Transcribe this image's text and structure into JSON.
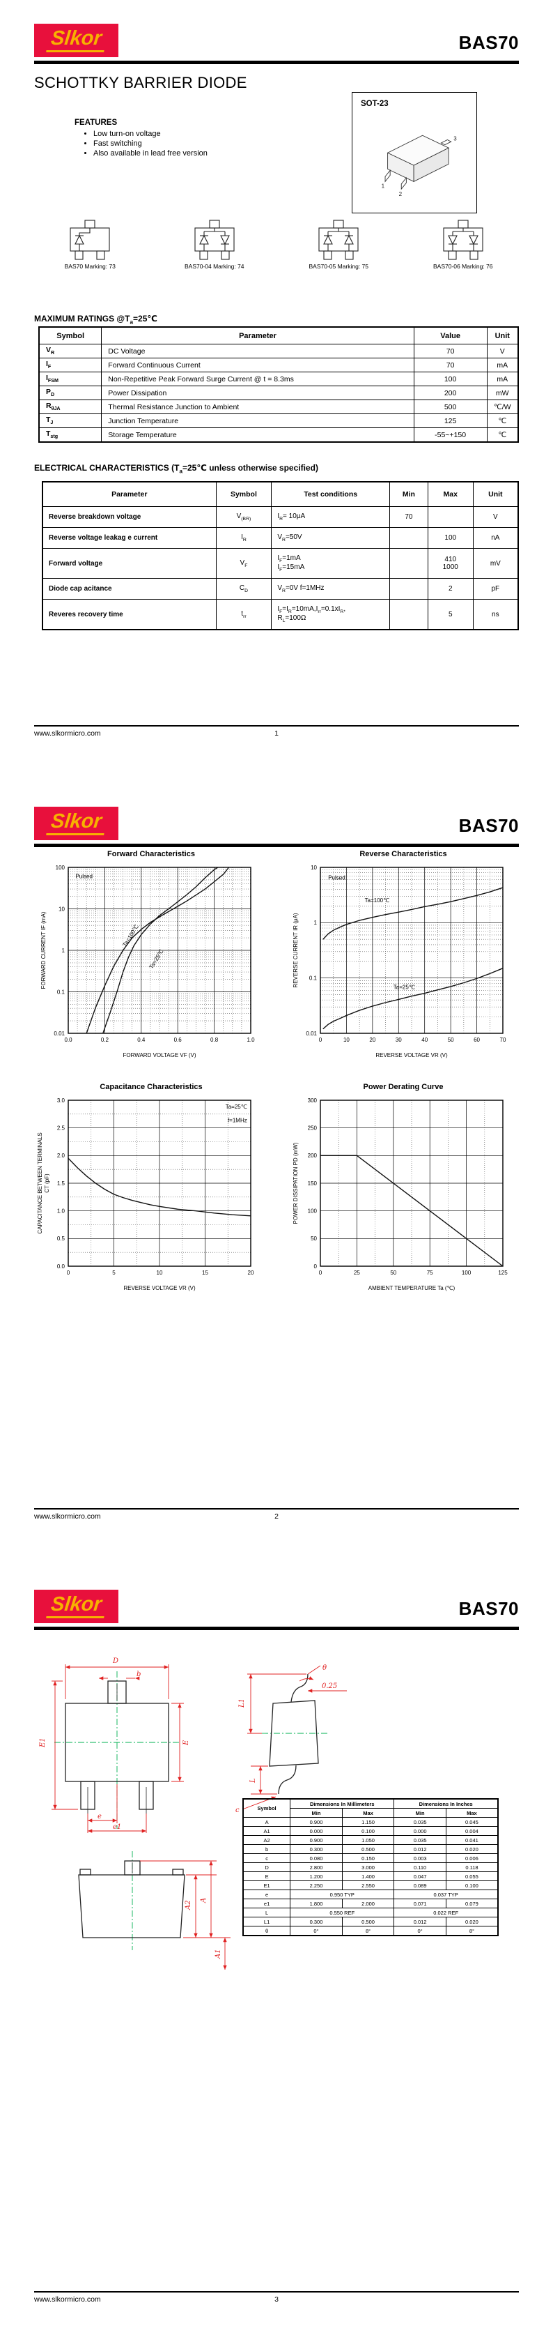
{
  "doc": {
    "brand": "Slkor",
    "part": "BAS70",
    "site": "www.slkormicro.com"
  },
  "page1": {
    "page_no": "1",
    "title": "SCHOTTKY BARRIER DIODE",
    "package": {
      "label": "SOT-23",
      "pins": [
        "1",
        "2",
        "3"
      ]
    },
    "features": {
      "heading": "FEATURES",
      "items": [
        "Low turn-on voltage",
        "Fast switching",
        "Also available in lead free version"
      ]
    },
    "markings": [
      {
        "label": "BAS70 Marking: 73"
      },
      {
        "label": "BAS70-04 Marking: 74"
      },
      {
        "label": "BAS70-05 Marking: 75"
      },
      {
        "label": "BAS70-06 Marking: 76"
      }
    ],
    "max_ratings": {
      "heading": "MAXIMUM RATINGS @T_a=25℃",
      "headers": [
        "Symbol",
        "Parameter",
        "Value",
        "Unit"
      ],
      "rows": [
        [
          "V_R",
          "DC Voltage",
          "70",
          "V"
        ],
        [
          "I_F",
          "Forward Continuous Current",
          "70",
          "mA"
        ],
        [
          "I_FSM",
          "Non-Repetitive Peak Forward Surge Current @ t = 8.3ms",
          "100",
          "mA"
        ],
        [
          "P_D",
          "Power Dissipation",
          "200",
          "mW"
        ],
        [
          "R_θJA",
          "Thermal Resistance Junction to Ambient",
          "500",
          "℃/W"
        ],
        [
          "T_J",
          "Junction Temperature",
          "125",
          "℃"
        ],
        [
          "T_stg",
          "Storage Temperature",
          "-55~+150",
          "℃"
        ]
      ]
    },
    "elec": {
      "heading": "ELECTRICAL CHARACTERISTICS (T_a=25℃ unless otherwise specified)",
      "headers": [
        "Parameter",
        "Symbol",
        "Test  conditions",
        "Min",
        "Max",
        "Unit"
      ],
      "rows": [
        [
          "Reverse breakdown voltage",
          "V_(BR)",
          "I_R= 10μA",
          "70",
          "",
          "V"
        ],
        [
          "Reverse voltage leakag e current",
          "I_R",
          "V_R=50V",
          "",
          "100",
          "nA"
        ],
        [
          "Forward  voltage",
          "V_F",
          "I_F=1mA\nI_F=15mA",
          "",
          "410\n1000",
          "mV"
        ],
        [
          "Diode cap acitance",
          "C_D",
          "V_R=0V  f=1MHz",
          "",
          "2",
          "pF"
        ],
        [
          "Reveres recovery time",
          "t_rr",
          "I_F=I_R=10mA,I_rr=0.1xI_R,\nR_L=100Ω",
          "",
          "5",
          "ns"
        ]
      ]
    }
  },
  "page2": {
    "page_no": "2"
  },
  "page3": {
    "page_no": "3",
    "drawings": {
      "top_labels": {
        "D": "D",
        "b": "b",
        "E1": "E1",
        "E": "E",
        "e": "e",
        "e1": "e1"
      },
      "side_labels": {
        "theta": "θ",
        "dim": "0.25",
        "L1": "L1",
        "L": "L",
        "c": "c"
      },
      "front_labels": {
        "A2": "A2",
        "A": "A",
        "A1": "A1"
      }
    },
    "dims": {
      "col_symbol": "Symbol",
      "col_mm": "Dimensions In Millimeters",
      "col_in": "Dimensions In Inches",
      "col_min": "Min",
      "col_max": "Max",
      "col_min2": "Min",
      "col_max2": "Max",
      "rows": [
        [
          "A",
          "0.900",
          "1.150",
          "0.035",
          "0.045"
        ],
        [
          "A1",
          "0.000",
          "0.100",
          "0.000",
          "0.004"
        ],
        [
          "A2",
          "0.900",
          "1.050",
          "0.035",
          "0.041"
        ],
        [
          "b",
          "0.300",
          "0.500",
          "0.012",
          "0.020"
        ],
        [
          "c",
          "0.080",
          "0.150",
          "0.003",
          "0.006"
        ],
        [
          "D",
          "2.800",
          "3.000",
          "0.110",
          "0.118"
        ],
        [
          "E",
          "1.200",
          "1.400",
          "0.047",
          "0.055"
        ],
        [
          "E1",
          "2.250",
          "2.550",
          "0.089",
          "0.100"
        ],
        [
          "e",
          "0.950 TYP",
          "0.037 TYP"
        ],
        [
          "e1",
          "1.800",
          "2.000",
          "0.071",
          "0.079"
        ],
        [
          "L",
          "0.550 REF",
          "0.022 REF"
        ],
        [
          "L1",
          "0.300",
          "0.500",
          "0.012",
          "0.020"
        ],
        [
          "θ",
          "0°",
          "8°",
          "0°",
          "8°"
        ]
      ]
    }
  },
  "chart_data": [
    {
      "type": "line",
      "title": "Forward    Characteristics",
      "xlabel": "FORWARD VOLTAGE   V_F   (V)",
      "ylabel": "FORWARD CURRENT   I_F   (mA)",
      "x": {
        "scale": "linear",
        "min": 0,
        "max": 1,
        "minor": 0.05,
        "ticks": [
          [
            0,
            "0.0"
          ],
          [
            0.2,
            "0.2"
          ],
          [
            0.4,
            "0.4"
          ],
          [
            0.6,
            "0.6"
          ],
          [
            0.8,
            "0.8"
          ],
          [
            1,
            "1.0"
          ]
        ]
      },
      "y": {
        "scale": "log",
        "min": 0.01,
        "max": 100,
        "ticks": [
          [
            0.01,
            "0.01"
          ],
          [
            0.1,
            "0.1"
          ],
          [
            1,
            "1"
          ],
          [
            10,
            "10"
          ],
          [
            100,
            "100"
          ]
        ]
      },
      "annotations": [
        {
          "text": "Pulsed",
          "x": 0.04,
          "y": 55,
          "rot": 0,
          "anchor": "start"
        }
      ],
      "series": [
        {
          "name": "T_a=100℃",
          "label": {
            "x": 0.315,
            "y": 1.2,
            "rot": -58
          },
          "points": [
            [
              0.1,
              0.01
            ],
            [
              0.15,
              0.042
            ],
            [
              0.2,
              0.14
            ],
            [
              0.25,
              0.42
            ],
            [
              0.3,
              1.0
            ],
            [
              0.35,
              2.0
            ],
            [
              0.4,
              3.2
            ],
            [
              0.45,
              4.7
            ],
            [
              0.5,
              6.4
            ],
            [
              0.55,
              8.6
            ],
            [
              0.6,
              11.5
            ],
            [
              0.65,
              15.5
            ],
            [
              0.7,
              21.5
            ],
            [
              0.75,
              30
            ],
            [
              0.8,
              45
            ],
            [
              0.85,
              68
            ],
            [
              0.88,
              100
            ]
          ]
        },
        {
          "name": "T_a=25℃",
          "label": {
            "x": 0.46,
            "y": 0.35,
            "rot": -58
          },
          "points": [
            [
              0.19,
              0.01
            ],
            [
              0.23,
              0.032
            ],
            [
              0.27,
              0.11
            ],
            [
              0.3,
              0.3
            ],
            [
              0.33,
              0.68
            ],
            [
              0.36,
              1.3
            ],
            [
              0.4,
              2.4
            ],
            [
              0.45,
              4.3
            ],
            [
              0.5,
              6.9
            ],
            [
              0.55,
              10
            ],
            [
              0.6,
              14.8
            ],
            [
              0.65,
              22
            ],
            [
              0.7,
              34
            ],
            [
              0.75,
              56
            ],
            [
              0.8,
              88
            ],
            [
              0.82,
              100
            ]
          ]
        }
      ]
    },
    {
      "type": "line",
      "title": "Reverse    Characteristics",
      "xlabel": "REVERSE VOLTAGE   V_R   (V)",
      "ylabel": "REVERSE CURRENT   I_R   (μA)",
      "x": {
        "scale": "linear",
        "min": 0,
        "max": 70,
        "minor": 5,
        "ticks": [
          [
            0,
            "0"
          ],
          [
            10,
            "10"
          ],
          [
            20,
            "20"
          ],
          [
            30,
            "30"
          ],
          [
            40,
            "40"
          ],
          [
            50,
            "50"
          ],
          [
            60,
            "60"
          ],
          [
            70,
            "70"
          ]
        ]
      },
      "y": {
        "scale": "log",
        "min": 0.01,
        "max": 10,
        "ticks": [
          [
            0.01,
            "0.01"
          ],
          [
            0.1,
            "0.1"
          ],
          [
            1,
            "1"
          ],
          [
            10,
            "10"
          ]
        ]
      },
      "annotations": [
        {
          "text": "Pulsed",
          "x": 3,
          "y": 6,
          "rot": 0,
          "anchor": "start"
        }
      ],
      "series": [
        {
          "name": "T_a=100℃",
          "label": {
            "x": 17,
            "y": 2.35,
            "rot": 0
          },
          "points": [
            [
              1,
              0.5
            ],
            [
              3,
              0.63
            ],
            [
              5,
              0.73
            ],
            [
              8,
              0.85
            ],
            [
              10,
              0.93
            ],
            [
              15,
              1.1
            ],
            [
              20,
              1.25
            ],
            [
              25,
              1.4
            ],
            [
              30,
              1.55
            ],
            [
              35,
              1.73
            ],
            [
              40,
              1.95
            ],
            [
              45,
              2.15
            ],
            [
              50,
              2.4
            ],
            [
              55,
              2.72
            ],
            [
              60,
              3.1
            ],
            [
              65,
              3.6
            ],
            [
              70,
              4.3
            ]
          ]
        },
        {
          "name": "T_a=25℃",
          "label": {
            "x": 28,
            "y": 0.063,
            "rot": 0
          },
          "points": [
            [
              1,
              0.012
            ],
            [
              3,
              0.0145
            ],
            [
              5,
              0.0165
            ],
            [
              8,
              0.019
            ],
            [
              10,
              0.021
            ],
            [
              15,
              0.026
            ],
            [
              20,
              0.031
            ],
            [
              25,
              0.036
            ],
            [
              30,
              0.041
            ],
            [
              35,
              0.047
            ],
            [
              40,
              0.053
            ],
            [
              45,
              0.061
            ],
            [
              50,
              0.07
            ],
            [
              55,
              0.082
            ],
            [
              60,
              0.098
            ],
            [
              65,
              0.12
            ],
            [
              70,
              0.15
            ]
          ]
        }
      ]
    },
    {
      "type": "line",
      "title": "Capacitance Characteristics",
      "xlabel": "REVERSE VOLTAGE   V_R   (V)",
      "ylabel": "CAPACITANCE BETWEEN TERMINALS\nC_T   (pF)",
      "x": {
        "scale": "linear",
        "min": 0,
        "max": 20,
        "minor": 2.5,
        "ticks": [
          [
            0,
            "0"
          ],
          [
            5,
            "5"
          ],
          [
            10,
            "10"
          ],
          [
            15,
            "15"
          ],
          [
            20,
            "20"
          ]
        ]
      },
      "y": {
        "scale": "linear",
        "min": 0,
        "max": 3,
        "minor": 0.25,
        "ticks": [
          [
            0,
            "0.0"
          ],
          [
            0.5,
            "0.5"
          ],
          [
            1,
            "1.0"
          ],
          [
            1.5,
            "1.5"
          ],
          [
            2,
            "2.0"
          ],
          [
            2.5,
            "2.5"
          ],
          [
            3,
            "3.0"
          ]
        ]
      },
      "annotations": [
        {
          "text": "T_a=25℃",
          "x": 19.6,
          "y": 2.85,
          "rot": 0,
          "anchor": "end"
        },
        {
          "text": "f=1MHz",
          "x": 19.6,
          "y": 2.6,
          "rot": 0,
          "anchor": "end"
        }
      ],
      "series": [
        {
          "name": "",
          "points": [
            [
              0,
              1.95
            ],
            [
              1,
              1.78
            ],
            [
              2,
              1.63
            ],
            [
              3,
              1.5
            ],
            [
              4,
              1.39
            ],
            [
              5,
              1.3
            ],
            [
              6,
              1.24
            ],
            [
              7,
              1.19
            ],
            [
              8,
              1.15
            ],
            [
              9,
              1.11
            ],
            [
              10,
              1.08
            ],
            [
              12,
              1.03
            ],
            [
              14,
              1.0
            ],
            [
              16,
              0.96
            ],
            [
              18,
              0.93
            ],
            [
              20,
              0.91
            ]
          ]
        }
      ]
    },
    {
      "type": "line",
      "title": "Power Derating Curve",
      "xlabel": "AMBIENT TEMPERATURE   T_a   (℃)",
      "ylabel": "POWER DISSIPATION   P_D   (mW)",
      "x": {
        "scale": "linear",
        "min": 0,
        "max": 125,
        "minor": 12.5,
        "ticks": [
          [
            0,
            "0"
          ],
          [
            25,
            "25"
          ],
          [
            50,
            "50"
          ],
          [
            75,
            "75"
          ],
          [
            100,
            "100"
          ],
          [
            125,
            "125"
          ]
        ]
      },
      "y": {
        "scale": "linear",
        "min": 0,
        "max": 300,
        "ticks": [
          [
            0,
            "0"
          ],
          [
            50,
            "50"
          ],
          [
            100,
            "100"
          ],
          [
            150,
            "150"
          ],
          [
            200,
            "200"
          ],
          [
            250,
            "250"
          ],
          [
            300,
            "300"
          ]
        ]
      },
      "annotations": [],
      "series": [
        {
          "name": "",
          "points": [
            [
              0,
              200
            ],
            [
              25,
              200
            ],
            [
              125,
              0
            ]
          ]
        }
      ]
    }
  ]
}
